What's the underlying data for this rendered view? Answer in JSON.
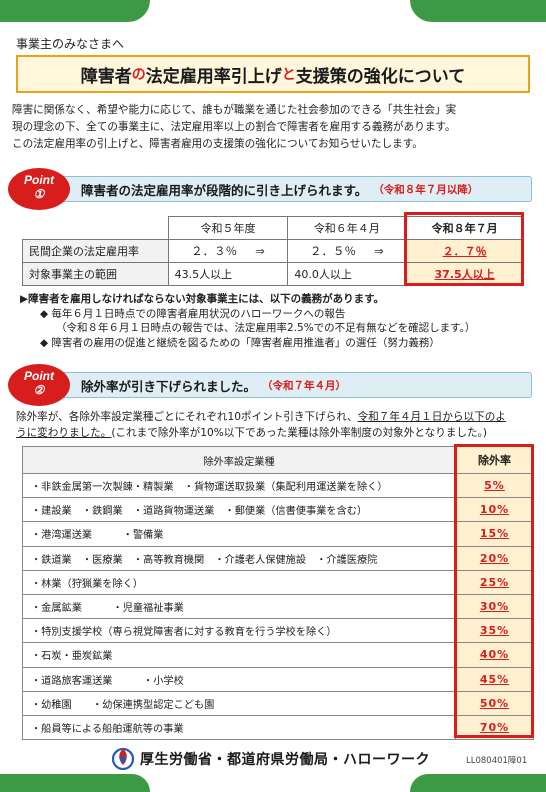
{
  "greeting": "事業主のみなさまへ",
  "title": {
    "part1": "障害者",
    "part2": "の",
    "part3": "法定雇用率引上げ",
    "part4": "と",
    "part5": "支援策の強化について"
  },
  "intro": [
    "障害に関係なく、希望や能力に応じて、誰もが職業を通じた社会参加のできる「共生社会」実",
    "現の理念の下、全ての事業主に、法定雇用率以上の割合で障害者を雇用する義務があります。",
    "この法定雇用率の引上げと、障害者雇用の支援策の強化についてお知らせいたします。"
  ],
  "point1": {
    "badge_word": "Point",
    "badge_num": "①",
    "heading": "障害者の法定雇用率が段階的に引き上げられます。",
    "note": "（令和８年７月以降）"
  },
  "rate_table": {
    "headers": [
      "令和５年度",
      "令和６年４月",
      "令和８年７月"
    ],
    "rows": [
      {
        "label": "民間企業の法定雇用率",
        "values": [
          "２．３％",
          "２．５％",
          "２．７％"
        ],
        "arrows": [
          "⇒",
          "⇒"
        ]
      },
      {
        "label": "対象事業主の範囲",
        "values": [
          "43.5人以上",
          "40.0人以上",
          "37.5人以上"
        ],
        "arrows": [
          "",
          ""
        ]
      }
    ]
  },
  "obligations": {
    "heading": "▶障害者を雇用しなければならない対象事業主には、以下の義務があります。",
    "items": [
      "◆ 毎年６月１日時点での障害者雇用状況のハローワークへの報告",
      "（令和８年６月１日時点の報告では、法定雇用率2.5%での不足有無などを確認します。）",
      "◆ 障害者の雇用の促進と継続を図るための「障害者雇用推進者」の選任（努力義務）"
    ]
  },
  "point2": {
    "badge_word": "Point",
    "badge_num": "②",
    "heading": "除外率が引き下げられました。",
    "note": "（令和７年４月）"
  },
  "point2_intro": {
    "line1": "除外率が、各除外率設定業種ごとにそれぞれ10ポイント引き下げられ、",
    "line1_ul": "令和７年４月１日から以下のよ",
    "line2_ul": "うに変わりました。",
    "line2": "(これまで除外率が10%以下であった業種は除外率制度の対象外となりました。)"
  },
  "exclusion_table": {
    "header_industry": "除外率設定業種",
    "header_rate": "除外率",
    "rows": [
      {
        "industry": "・非鉄金属第一次製錬・精製業　・貨物運送取扱業（集配利用運送業を除く）",
        "rate": "5%"
      },
      {
        "industry": "・建設業　・鉄鋼業　・道路貨物運送業　・郵便業（信書便事業を含む）",
        "rate": "10%"
      },
      {
        "industry": "・港湾運送業　　　・警備業",
        "rate": "15%"
      },
      {
        "industry": "・鉄道業　・医療業　・高等教育機関　・介護老人保健施設　・介護医療院",
        "rate": "20%"
      },
      {
        "industry": "・林業（狩猟業を除く）",
        "rate": "25%"
      },
      {
        "industry": "・金属鉱業　　　・児童福祉事業",
        "rate": "30%"
      },
      {
        "industry": "・特別支援学校（専ら視覚障害者に対する教育を行う学校を除く）",
        "rate": "35%"
      },
      {
        "industry": "・石炭・亜炭鉱業",
        "rate": "40%"
      },
      {
        "industry": "・道路旅客運送業　　　・小学校",
        "rate": "45%"
      },
      {
        "industry": "・幼稚園　　・幼保連携型認定こども園",
        "rate": "50%"
      },
      {
        "industry": "・船員等による船舶運航等の事業",
        "rate": "70%"
      }
    ]
  },
  "footer": {
    "org": "厚生労働省・都道府県労働局・ハローワーク",
    "code": "LL080401障01"
  },
  "colors": {
    "accent_red": "#d81d1d",
    "green_bar": "#3c9a45",
    "title_border": "#e8a318"
  }
}
